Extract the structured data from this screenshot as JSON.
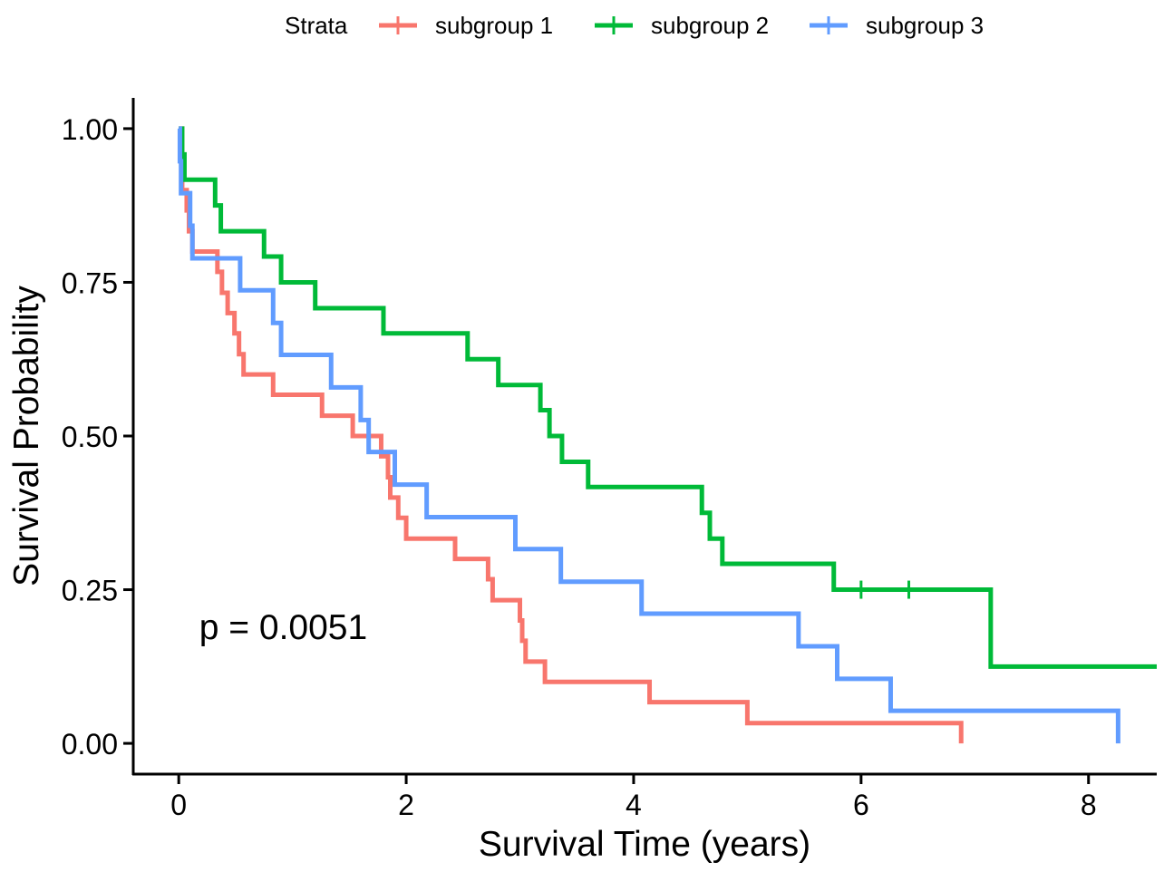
{
  "chart_data": {
    "type": "line",
    "subtype": "kaplan-meier step",
    "title": "",
    "xlabel": "Survival Time (years)",
    "ylabel": "Survival Probability",
    "xlim": [
      -0.4,
      8.6
    ],
    "ylim": [
      -0.05,
      1.05
    ],
    "x_ticks": [
      0,
      2,
      4,
      6,
      8
    ],
    "x_tick_labels": [
      "0",
      "2",
      "4",
      "6",
      "8"
    ],
    "y_ticks": [
      0,
      0.25,
      0.5,
      0.75,
      1
    ],
    "y_tick_labels": [
      "0.00",
      "0.25",
      "0.50",
      "0.75",
      "1.00"
    ],
    "legend": {
      "title": "Strata",
      "position": "top"
    },
    "annotation": "p = 0.0051",
    "annotation_at": [
      0.18,
      0.19
    ],
    "series": [
      {
        "name": "subgroup 1",
        "color": "#F8766D",
        "points": [
          [
            0,
            1.0
          ],
          [
            0.03,
            0.9
          ],
          [
            0.07,
            0.867
          ],
          [
            0.09,
            0.833
          ],
          [
            0.12,
            0.8
          ],
          [
            0.34,
            0.767
          ],
          [
            0.38,
            0.733
          ],
          [
            0.43,
            0.7
          ],
          [
            0.49,
            0.667
          ],
          [
            0.53,
            0.633
          ],
          [
            0.57,
            0.6
          ],
          [
            0.83,
            0.567
          ],
          [
            1.26,
            0.533
          ],
          [
            1.53,
            0.5
          ],
          [
            1.78,
            0.467
          ],
          [
            1.84,
            0.433
          ],
          [
            1.86,
            0.4
          ],
          [
            1.93,
            0.367
          ],
          [
            2.0,
            0.333
          ],
          [
            2.43,
            0.3
          ],
          [
            2.72,
            0.267
          ],
          [
            2.76,
            0.233
          ],
          [
            3.0,
            0.2
          ],
          [
            3.02,
            0.167
          ],
          [
            3.05,
            0.133
          ],
          [
            3.22,
            0.1
          ],
          [
            4.14,
            0.067
          ],
          [
            5.0,
            0.033
          ],
          [
            6.88,
            0.0
          ]
        ],
        "end_x": 6.88,
        "censor_times": []
      },
      {
        "name": "subgroup 2",
        "color": "#00BA38",
        "points": [
          [
            0,
            1.0
          ],
          [
            0.03,
            0.958
          ],
          [
            0.05,
            0.917
          ],
          [
            0.32,
            0.875
          ],
          [
            0.37,
            0.833
          ],
          [
            0.75,
            0.792
          ],
          [
            0.9,
            0.75
          ],
          [
            1.2,
            0.708
          ],
          [
            1.8,
            0.667
          ],
          [
            2.54,
            0.625
          ],
          [
            2.81,
            0.583
          ],
          [
            3.18,
            0.542
          ],
          [
            3.26,
            0.5
          ],
          [
            3.37,
            0.458
          ],
          [
            3.6,
            0.417
          ],
          [
            4.6,
            0.375
          ],
          [
            4.67,
            0.333
          ],
          [
            4.78,
            0.292
          ],
          [
            5.76,
            0.25
          ],
          [
            7.14,
            0.125
          ]
        ],
        "end_x": 8.6,
        "censor_times": [
          6.0,
          6.42
        ]
      },
      {
        "name": "subgroup 3",
        "color": "#619CFF",
        "points": [
          [
            0,
            1.0
          ],
          [
            0.01,
            0.947
          ],
          [
            0.02,
            0.895
          ],
          [
            0.1,
            0.842
          ],
          [
            0.12,
            0.789
          ],
          [
            0.54,
            0.737
          ],
          [
            0.83,
            0.684
          ],
          [
            0.9,
            0.632
          ],
          [
            1.34,
            0.579
          ],
          [
            1.6,
            0.526
          ],
          [
            1.67,
            0.474
          ],
          [
            1.9,
            0.421
          ],
          [
            2.18,
            0.368
          ],
          [
            2.96,
            0.316
          ],
          [
            3.36,
            0.263
          ],
          [
            4.07,
            0.211
          ],
          [
            5.45,
            0.158
          ],
          [
            5.79,
            0.105
          ],
          [
            6.26,
            0.053
          ],
          [
            8.26,
            0.0
          ]
        ],
        "end_x": 8.26,
        "censor_times": []
      }
    ]
  }
}
